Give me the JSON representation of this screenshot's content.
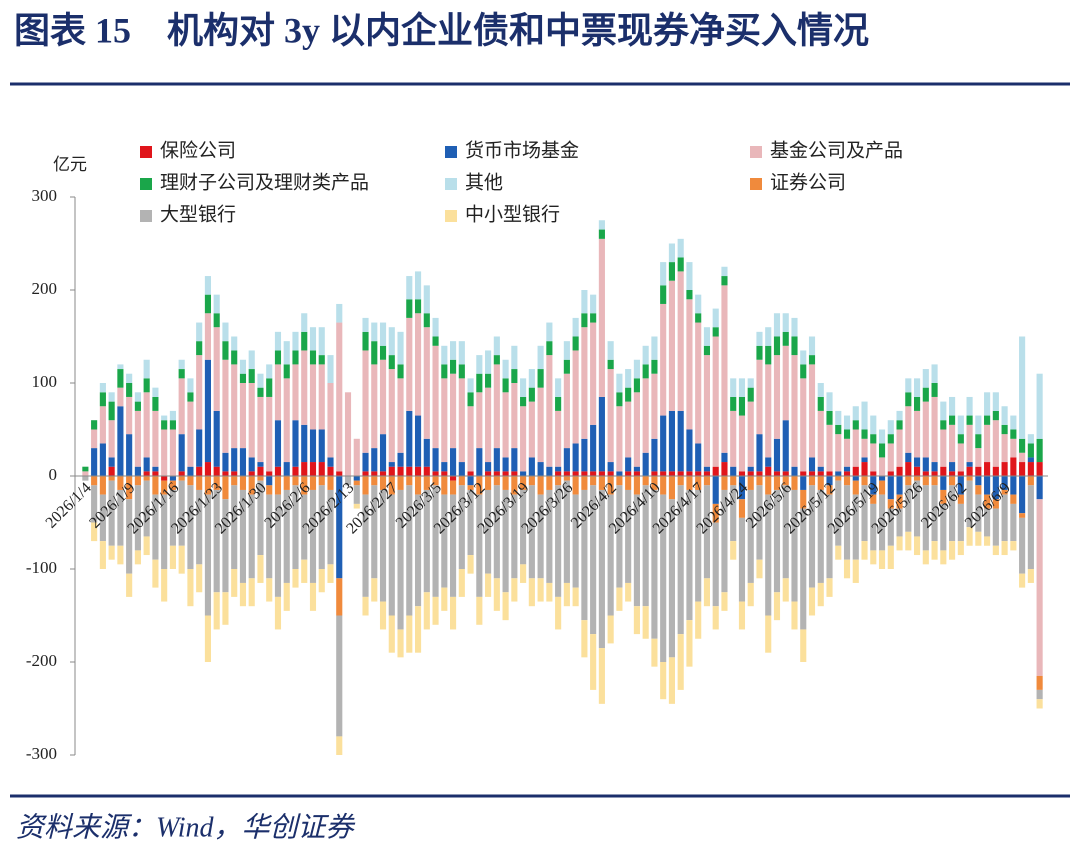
{
  "chart_data": {
    "type": "stacked-bar",
    "title": "图表 15　机构对 3y 以内企业债和中票现券净买入情况",
    "source": "资料来源：Wind，华创证券",
    "y_label": "亿元",
    "ylim": [
      -300,
      300
    ],
    "yticks": [
      300,
      200,
      100,
      0,
      -100,
      -200,
      -300
    ],
    "categories": [
      "2026/1/4",
      null,
      null,
      null,
      null,
      "2026/1/9",
      null,
      null,
      null,
      null,
      "2026/1/16",
      null,
      null,
      null,
      null,
      "2026/1/23",
      null,
      null,
      null,
      null,
      "2026/1/30",
      null,
      null,
      null,
      null,
      "2026/2/6",
      null,
      null,
      null,
      null,
      "2026/2/13",
      null,
      null,
      null,
      null,
      "2026/2/27",
      null,
      null,
      null,
      null,
      "2026/3/5",
      null,
      null,
      null,
      null,
      "2026/3/12",
      null,
      null,
      null,
      null,
      "2026/3/19",
      null,
      null,
      null,
      null,
      "2026/3/26",
      null,
      null,
      null,
      null,
      "2026/4/2",
      null,
      null,
      null,
      null,
      "2026/4/10",
      null,
      null,
      null,
      null,
      "2026/4/17",
      null,
      null,
      null,
      null,
      "2026/4/24",
      null,
      null,
      null,
      null,
      "2026/5/6",
      null,
      null,
      null,
      null,
      "2026/5/12",
      null,
      null,
      null,
      null,
      "2026/5/19",
      null,
      null,
      null,
      null,
      "2026/5/26",
      null,
      null,
      null,
      null,
      "2026/6/2",
      null,
      null,
      null,
      null,
      "2026/6/9",
      null,
      null,
      null,
      null
    ],
    "series": [
      {
        "name": "保险公司",
        "color": "#e0151b",
        "values": [
          0,
          0,
          0,
          10,
          0,
          0,
          0,
          5,
          5,
          -5,
          0,
          5,
          0,
          10,
          15,
          10,
          5,
          5,
          0,
          5,
          10,
          5,
          10,
          0,
          10,
          15,
          15,
          15,
          10,
          5,
          0,
          0,
          5,
          5,
          5,
          10,
          10,
          10,
          10,
          10,
          5,
          5,
          -5,
          0,
          5,
          0,
          5,
          5,
          5,
          5,
          0,
          0,
          0,
          0,
          5,
          5,
          5,
          5,
          5,
          5,
          5,
          0,
          5,
          5,
          0,
          5,
          5,
          5,
          5,
          5,
          5,
          5,
          10,
          15,
          0,
          5,
          5,
          5,
          10,
          5,
          5,
          0,
          5,
          5,
          5,
          5,
          0,
          5,
          10,
          15,
          5,
          0,
          5,
          10,
          15,
          10,
          5,
          5,
          10,
          5,
          5,
          10,
          10,
          15,
          10,
          15,
          20,
          15,
          15,
          15
        ]
      },
      {
        "name": "货币市场基金",
        "color": "#1f5fb4",
        "values": [
          0,
          30,
          35,
          10,
          75,
          45,
          10,
          15,
          5,
          0,
          -5,
          40,
          10,
          40,
          110,
          60,
          20,
          25,
          30,
          15,
          5,
          -10,
          50,
          15,
          50,
          40,
          35,
          35,
          10,
          -110,
          0,
          -5,
          20,
          25,
          40,
          5,
          15,
          60,
          55,
          30,
          25,
          10,
          30,
          15,
          -10,
          30,
          10,
          25,
          15,
          25,
          5,
          20,
          15,
          10,
          5,
          25,
          30,
          35,
          50,
          80,
          10,
          5,
          15,
          5,
          25,
          35,
          60,
          65,
          65,
          45,
          30,
          5,
          -30,
          10,
          10,
          -25,
          5,
          40,
          10,
          35,
          55,
          10,
          -15,
          15,
          5,
          -10,
          5,
          5,
          -5,
          5,
          -20,
          -5,
          -25,
          -20,
          10,
          10,
          15,
          10,
          -15,
          10,
          -20,
          5,
          -10,
          -20,
          -25,
          -15,
          -20,
          -40,
          5,
          -25
        ]
      },
      {
        "name": "基金公司及产品",
        "color": "#e9b7ba",
        "values": [
          5,
          20,
          40,
          40,
          20,
          40,
          60,
          70,
          60,
          50,
          50,
          60,
          70,
          80,
          50,
          90,
          100,
          90,
          70,
          80,
          70,
          80,
          60,
          90,
          60,
          80,
          70,
          70,
          80,
          160,
          90,
          40,
          110,
          90,
          80,
          100,
          80,
          100,
          110,
          120,
          110,
          90,
          80,
          90,
          70,
          60,
          80,
          90,
          70,
          70,
          70,
          60,
          80,
          120,
          60,
          80,
          100,
          120,
          110,
          170,
          100,
          70,
          60,
          80,
          80,
          70,
          120,
          140,
          150,
          140,
          130,
          120,
          140,
          180,
          60,
          60,
          70,
          80,
          100,
          90,
          80,
          120,
          100,
          100,
          60,
          50,
          40,
          30,
          40,
          20,
          30,
          20,
          30,
          40,
          50,
          50,
          60,
          70,
          40,
          40,
          30,
          40,
          20,
          40,
          50,
          30,
          20,
          10,
          0,
          -190
        ]
      },
      {
        "name": "理财子公司及理财类产品",
        "color": "#1aa64a",
        "values": [
          5,
          10,
          15,
          20,
          20,
          15,
          10,
          15,
          15,
          10,
          10,
          10,
          10,
          15,
          20,
          15,
          20,
          15,
          10,
          15,
          10,
          20,
          15,
          15,
          15,
          20,
          15,
          10,
          0,
          0,
          0,
          0,
          20,
          25,
          15,
          15,
          15,
          20,
          15,
          15,
          10,
          15,
          15,
          15,
          15,
          20,
          15,
          10,
          15,
          15,
          10,
          15,
          20,
          15,
          15,
          15,
          15,
          15,
          10,
          10,
          10,
          15,
          15,
          15,
          15,
          15,
          20,
          20,
          15,
          10,
          10,
          10,
          10,
          10,
          15,
          20,
          15,
          15,
          20,
          20,
          15,
          20,
          15,
          10,
          15,
          15,
          10,
          10,
          10,
          10,
          10,
          15,
          10,
          10,
          15,
          15,
          15,
          15,
          10,
          10,
          10,
          10,
          15,
          10,
          10,
          10,
          10,
          15,
          15,
          25
        ]
      },
      {
        "name": "其他",
        "color": "#b9dfea",
        "values": [
          0,
          0,
          10,
          10,
          5,
          10,
          10,
          20,
          10,
          5,
          10,
          10,
          15,
          20,
          20,
          20,
          20,
          15,
          15,
          20,
          15,
          15,
          20,
          25,
          20,
          20,
          25,
          30,
          30,
          20,
          0,
          0,
          15,
          20,
          25,
          30,
          35,
          25,
          30,
          30,
          20,
          20,
          20,
          25,
          15,
          20,
          25,
          20,
          20,
          25,
          20,
          20,
          25,
          20,
          20,
          20,
          20,
          25,
          20,
          10,
          20,
          20,
          20,
          20,
          20,
          25,
          25,
          20,
          20,
          30,
          20,
          20,
          20,
          10,
          20,
          20,
          10,
          15,
          20,
          25,
          20,
          20,
          15,
          20,
          15,
          20,
          15,
          15,
          15,
          30,
          20,
          15,
          15,
          10,
          15,
          20,
          20,
          20,
          20,
          20,
          20,
          20,
          20,
          25,
          20,
          20,
          15,
          110,
          10,
          70
        ]
      },
      {
        "name": "证券公司",
        "color": "#f08a3c",
        "values": [
          0,
          -10,
          -20,
          -5,
          -15,
          -25,
          -10,
          -5,
          -20,
          -15,
          -10,
          -5,
          -10,
          -15,
          -20,
          -15,
          -25,
          -10,
          -15,
          -20,
          -5,
          -10,
          -20,
          -15,
          -10,
          -20,
          -15,
          -10,
          -15,
          -40,
          0,
          -5,
          -20,
          -10,
          -15,
          -20,
          -15,
          -10,
          -20,
          -15,
          -10,
          -20,
          -15,
          -10,
          -5,
          -20,
          -15,
          -10,
          -15,
          -20,
          -15,
          -10,
          -20,
          -15,
          -10,
          -5,
          -20,
          -15,
          -10,
          -15,
          -20,
          -10,
          -15,
          -20,
          -10,
          -15,
          -20,
          -25,
          -10,
          -15,
          -15,
          -10,
          -20,
          -15,
          -10,
          -20,
          -15,
          -10,
          -20,
          -15,
          -10,
          -15,
          -20,
          -10,
          -15,
          -10,
          -5,
          -10,
          -15,
          -10,
          -10,
          -15,
          -10,
          -15,
          -10,
          -5,
          -10,
          -10,
          -15,
          -10,
          -10,
          -5,
          -10,
          -15,
          -10,
          -5,
          -10,
          -5,
          -10,
          -15
        ]
      },
      {
        "name": "大型银行",
        "color": "#b3b3b3",
        "values": [
          -5,
          -40,
          -50,
          -70,
          -60,
          -80,
          -70,
          -60,
          -70,
          -80,
          -60,
          -70,
          -90,
          -80,
          -130,
          -110,
          -100,
          -90,
          -100,
          -90,
          -80,
          -90,
          -110,
          -100,
          -90,
          -70,
          -100,
          -90,
          -80,
          -130,
          -10,
          -20,
          -110,
          -100,
          -120,
          -130,
          -150,
          -140,
          -120,
          -110,
          -120,
          -100,
          -110,
          -90,
          -70,
          -110,
          -90,
          -100,
          -110,
          -90,
          -80,
          -100,
          -90,
          -100,
          -120,
          -110,
          -100,
          -140,
          -160,
          -170,
          -130,
          -110,
          -100,
          -120,
          -130,
          -160,
          -180,
          -170,
          -160,
          -140,
          -120,
          -100,
          -90,
          -110,
          -60,
          -90,
          -100,
          -80,
          -130,
          -110,
          -100,
          -120,
          -130,
          -110,
          -100,
          -90,
          -70,
          -80,
          -70,
          -60,
          -50,
          -60,
          -40,
          -30,
          -50,
          -60,
          -70,
          -60,
          -50,
          -60,
          -40,
          -50,
          -40,
          -30,
          -40,
          -50,
          -40,
          -60,
          -90,
          -10
        ]
      },
      {
        "name": "中小型银行",
        "color": "#fbe09c",
        "values": [
          0,
          -20,
          -30,
          -15,
          -20,
          -25,
          -15,
          -20,
          -30,
          -35,
          -25,
          -30,
          -40,
          -30,
          -50,
          -40,
          -35,
          -30,
          -25,
          -30,
          -30,
          -25,
          -35,
          -30,
          -20,
          -25,
          -30,
          -25,
          -20,
          -20,
          0,
          -5,
          -20,
          -25,
          -30,
          -40,
          -30,
          -40,
          -50,
          -40,
          -30,
          -25,
          -35,
          -30,
          -20,
          -30,
          -25,
          -35,
          -30,
          -25,
          -20,
          -30,
          -25,
          -20,
          -35,
          -25,
          -20,
          -40,
          -60,
          -60,
          -30,
          -25,
          -20,
          -30,
          -35,
          -30,
          -40,
          -50,
          -60,
          -50,
          -40,
          -30,
          -25,
          -20,
          -20,
          -30,
          -25,
          -20,
          -40,
          -30,
          -25,
          -30,
          -35,
          -30,
          -25,
          -20,
          -15,
          -20,
          -25,
          -20,
          -15,
          -20,
          -25,
          -15,
          -20,
          -20,
          -15,
          -20,
          -15,
          -20,
          -15,
          -20,
          -15,
          -10,
          -10,
          -15,
          -10,
          -15,
          -15,
          -10
        ]
      }
    ]
  }
}
